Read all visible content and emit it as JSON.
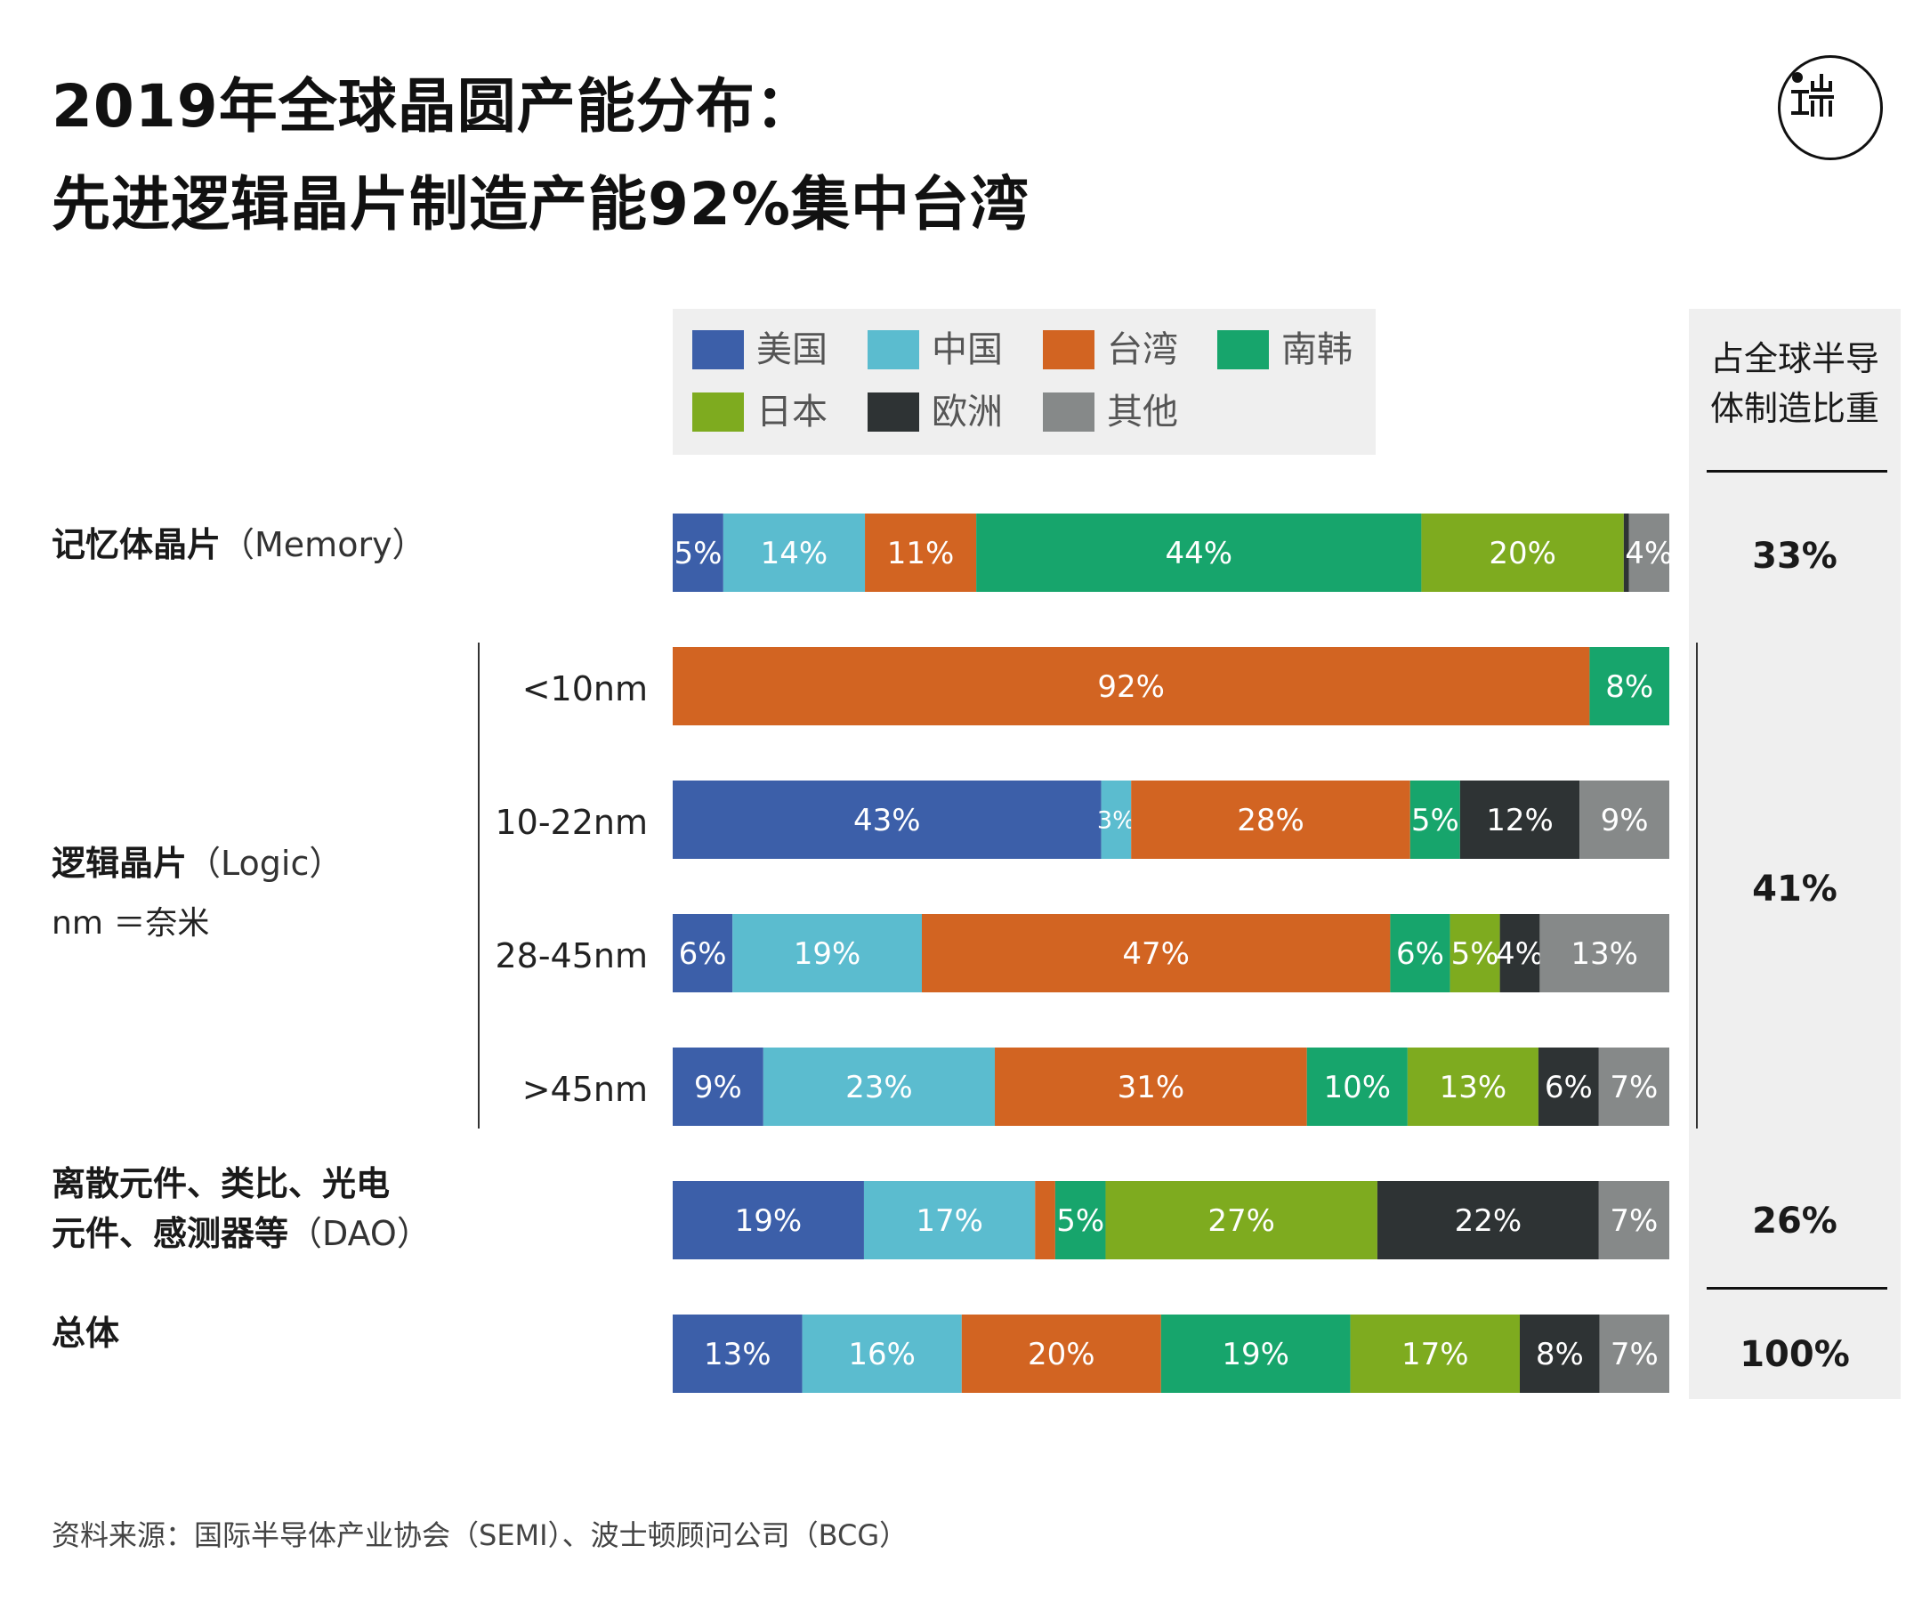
{
  "title_line1": "2019年全球晶圆产能分布：",
  "title_line2": "先进逻辑晶片制造产能92%集中台湾",
  "logo": {
    "icon": "端-logo-icon"
  },
  "source": "资料来源：国际半导体产业协会（SEMI）、波士顿顾问公司（BCG）",
  "share_panel": {
    "header_line1": "占全球半导",
    "header_line2": "体制造比重",
    "memory": "33%",
    "logic": "41%",
    "dao": "26%",
    "total": "100%"
  },
  "labels": {
    "memory": {
      "cn": "记忆体晶片",
      "en": "（Memory）"
    },
    "logic": {
      "cn": "逻辑晶片",
      "en": "（Logic）",
      "note": "nm ＝奈米"
    },
    "dao": {
      "line1": "离散元件、类比、光电",
      "line2": "元件、感测器等",
      "en": "（DAO）"
    },
    "total": {
      "cn": "总体"
    },
    "nodes": [
      "<10nm",
      "10-22nm",
      "28-45nm",
      ">45nm"
    ]
  },
  "chart_data": {
    "type": "bar",
    "orientation": "horizontal",
    "stacked": true,
    "normalized": true,
    "legend_position": "top",
    "categories": [
      "记忆体晶片（Memory）",
      "<10nm",
      "10-22nm",
      "28-45nm",
      ">45nm",
      "离散元件、类比、光电元件、感测器等（DAO）",
      "总体"
    ],
    "series": [
      {
        "name": "美国",
        "color": "#3c5fa9",
        "values": [
          5,
          0,
          43,
          6,
          9,
          19,
          13
        ],
        "labels": [
          "5%",
          "",
          "43%",
          "6%",
          "9%",
          "19%",
          "13%"
        ]
      },
      {
        "name": "中国",
        "color": "#5bbccf",
        "values": [
          14,
          0,
          3,
          19,
          23,
          17,
          16
        ],
        "labels": [
          "14%",
          "",
          "3%",
          "19%",
          "23%",
          "17%",
          "16%"
        ]
      },
      {
        "name": "台湾",
        "color": "#d26422",
        "values": [
          11,
          92,
          28,
          47,
          31,
          2,
          20
        ],
        "labels": [
          "11%",
          "92%",
          "28%",
          "47%",
          "31%",
          "",
          "20%"
        ]
      },
      {
        "name": "南韩",
        "color": "#17a56c",
        "values": [
          44,
          8,
          5,
          6,
          10,
          5,
          19
        ],
        "labels": [
          "44%",
          "8%",
          "5%",
          "6%",
          "10%",
          "5%",
          "19%"
        ]
      },
      {
        "name": "日本",
        "color": "#7eab1f",
        "values": [
          20,
          0,
          0,
          5,
          13,
          27,
          17
        ],
        "labels": [
          "20%",
          "",
          "",
          "5%",
          "13%",
          "27%",
          "17%"
        ]
      },
      {
        "name": "欧洲",
        "color": "#2e3334",
        "values": [
          0.5,
          0,
          12,
          4,
          6,
          22,
          8
        ],
        "labels": [
          "",
          "",
          "12%",
          "4%",
          "6%",
          "22%",
          "8%"
        ]
      },
      {
        "name": "其他",
        "color": "#868989",
        "values": [
          4,
          0,
          9,
          13,
          7,
          7,
          7
        ],
        "labels": [
          "4%",
          "",
          "9%",
          "13%",
          "7%",
          "7%",
          "7%"
        ]
      }
    ]
  }
}
